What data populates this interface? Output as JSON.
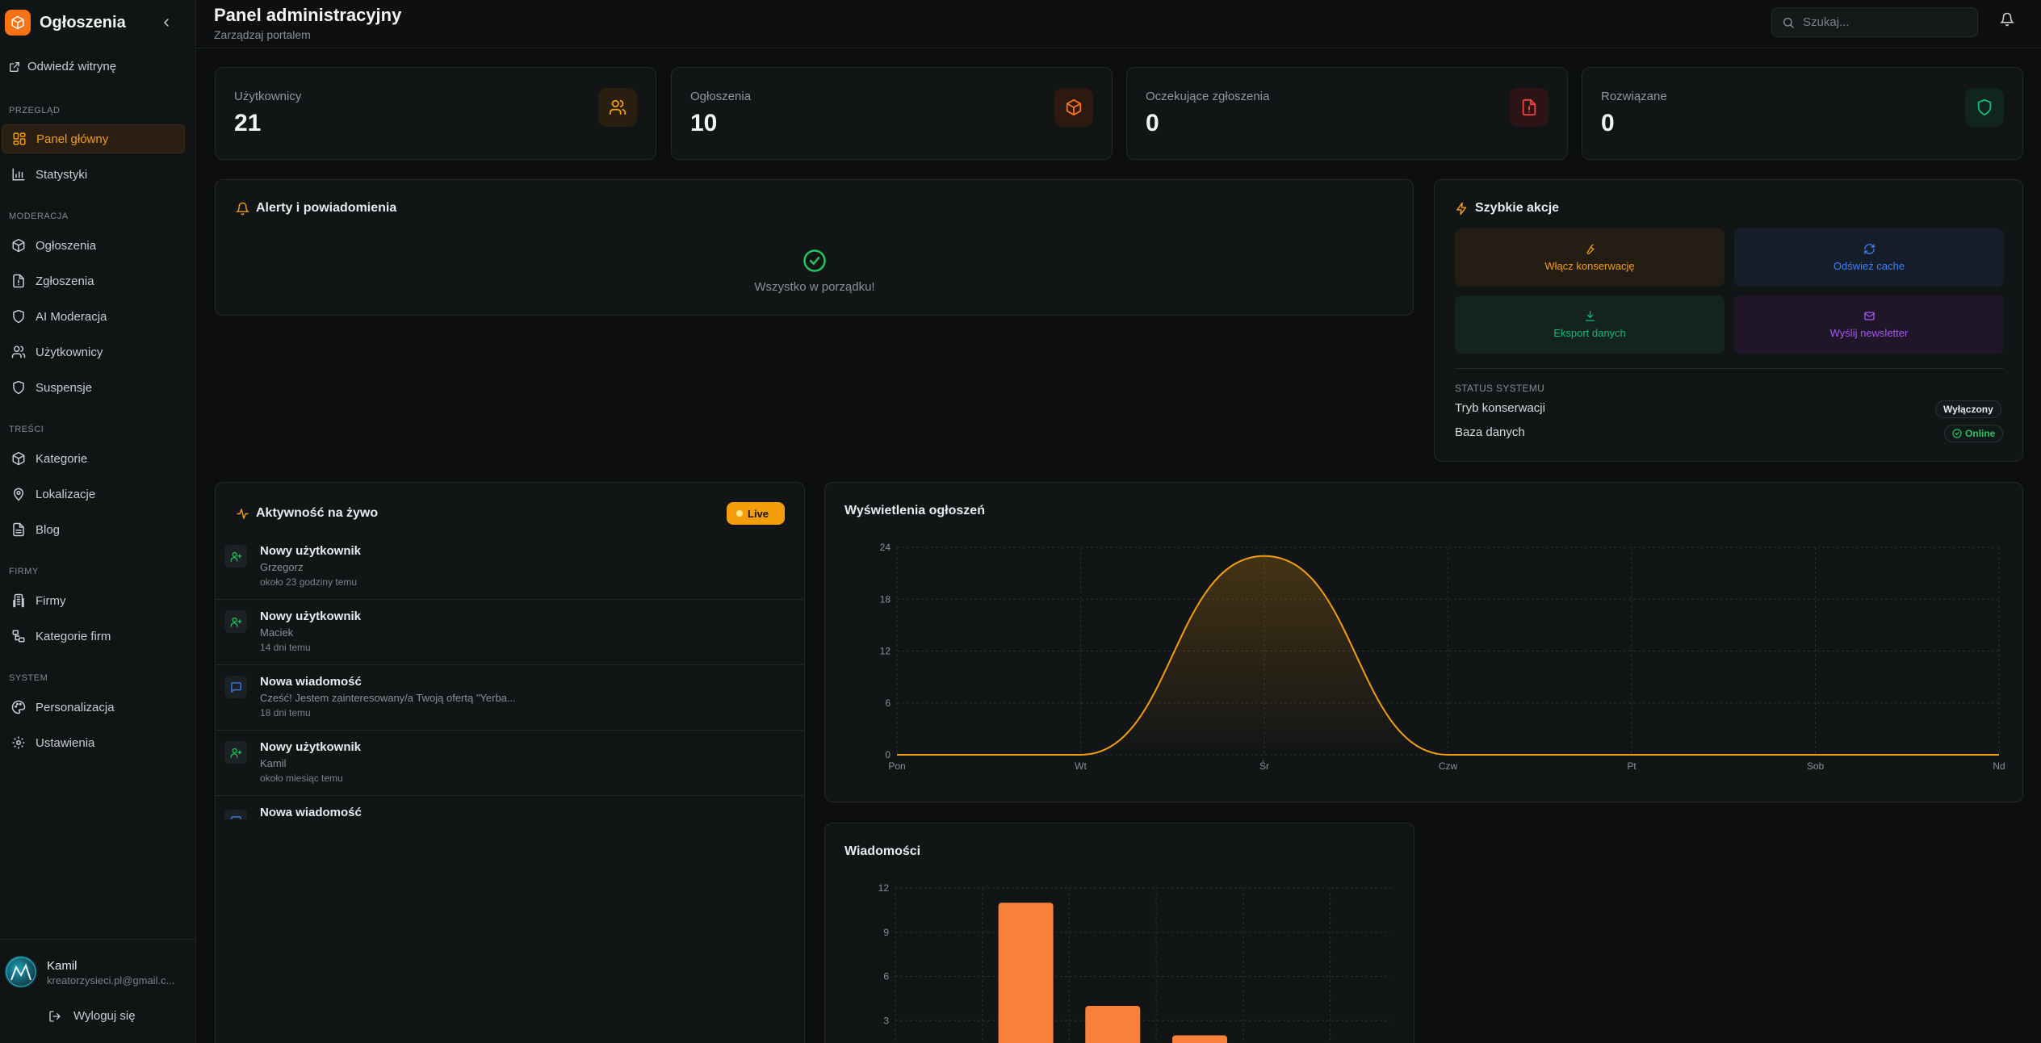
{
  "sidebar": {
    "brand": "Ogłoszenia",
    "visit_site": "Odwiedź witrynę",
    "sections": {
      "overview": "PRZEGLĄD",
      "moderation": "MODERACJA",
      "content": "TREŚCI",
      "companies": "FIRMY",
      "system": "SYSTEM"
    },
    "items": {
      "dashboard": "Panel główny",
      "stats": "Statystyki",
      "ads": "Ogłoszenia",
      "reports": "Zgłoszenia",
      "ai_moderation": "AI Moderacja",
      "users": "Użytkownicy",
      "suspensions": "Suspensje",
      "categories": "Kategorie",
      "locations": "Lokalizacje",
      "blog": "Blog",
      "firms": "Firmy",
      "firm_categories": "Kategorie firm",
      "personalization": "Personalizacja",
      "settings": "Ustawienia"
    },
    "user": {
      "name": "Kamil",
      "email": "kreatorzysieci.pl@gmail.c..."
    },
    "logout": "Wyloguj się"
  },
  "header": {
    "title": "Panel administracyjny",
    "subtitle": "Zarządzaj portalem",
    "search_placeholder": "Szukaj..."
  },
  "stats": {
    "users": {
      "label": "Użytkownicy",
      "value": "21"
    },
    "ads": {
      "label": "Ogłoszenia",
      "value": "10"
    },
    "pending": {
      "label": "Oczekujące zgłoszenia",
      "value": "0"
    },
    "resolved": {
      "label": "Rozwiązane",
      "value": "0"
    }
  },
  "alerts": {
    "title": "Alerty i powiadomienia",
    "empty": "Wszystko w porządku!"
  },
  "quick_actions": {
    "title": "Szybkie akcje",
    "maintenance": "Włącz konserwację",
    "refresh_cache": "Odśwież cache",
    "export": "Eksport danych",
    "newsletter": "Wyślij newsletter",
    "status_label": "STATUS SYSTEMU",
    "maintenance_mode": "Tryb konserwacji",
    "maintenance_value": "Wyłączony",
    "database": "Baza danych",
    "database_value": "Online"
  },
  "activity": {
    "title": "Aktywność na żywo",
    "live": "Live",
    "items": [
      {
        "title": "Nowy użytkownik",
        "sub": "Grzegorz",
        "time": "około 23 godziny temu"
      },
      {
        "title": "Nowy użytkownik",
        "sub": "Maciek",
        "time": "14 dni temu"
      },
      {
        "title": "Nowa wiadomość",
        "sub": "Cześć! Jestem zainteresowany/a Twoją ofertą \"Yerba...",
        "time": "18 dni temu"
      },
      {
        "title": "Nowy użytkownik",
        "sub": "Kamil",
        "time": "około miesiąc temu"
      },
      {
        "title": "Nowa wiadomość",
        "sub": "",
        "time": ""
      }
    ]
  },
  "chart_data": [
    {
      "type": "area",
      "title": "Wyświetlenia ogłoszeń",
      "x": [
        "Pon",
        "Wt",
        "Śr",
        "Czw",
        "Pt",
        "Sob",
        "Nd"
      ],
      "values": [
        0,
        0,
        23,
        0,
        0,
        0,
        0
      ],
      "ylim": [
        0,
        24
      ],
      "yticks": [
        "0",
        "6",
        "12",
        "18",
        "24"
      ],
      "color": "#f59e0b",
      "grid": true
    },
    {
      "type": "bar",
      "title": "Wiadomości",
      "categories": [
        "",
        "",
        "",
        ""
      ],
      "values": [
        0,
        11,
        4,
        2
      ],
      "ylim": [
        0,
        12
      ],
      "yticks": [
        "3",
        "6",
        "9",
        "12"
      ],
      "color": "#f7813a",
      "grid": true
    }
  ],
  "colors": {
    "accent": "#f59e0b",
    "brand": "#f97316"
  }
}
